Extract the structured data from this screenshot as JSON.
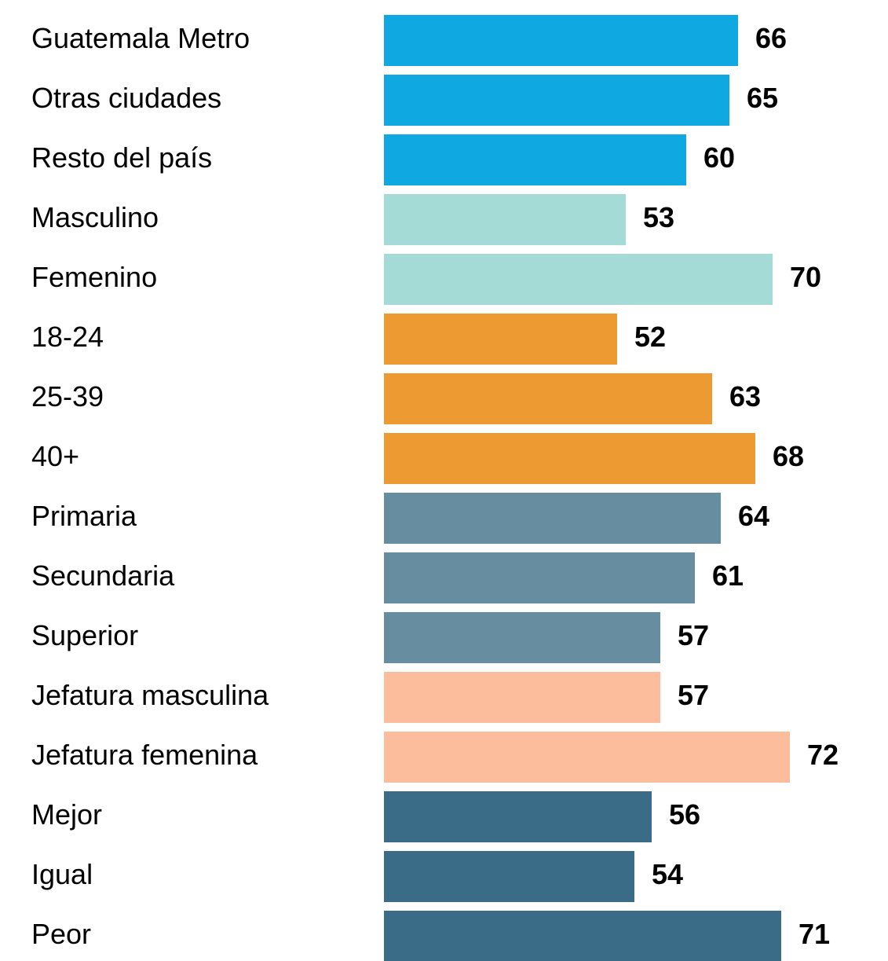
{
  "chart_data": {
    "type": "bar",
    "orientation": "horizontal",
    "categories": [
      "Guatemala Metro",
      "Otras ciudades",
      "Resto del país",
      "Masculino",
      "Femenino",
      "18-24",
      "25-39",
      "40+",
      "Primaria",
      "Secundaria",
      "Superior",
      "Jefatura masculina",
      "Jefatura femenina",
      "Mejor",
      "Igual",
      "Peor"
    ],
    "values": [
      66,
      65,
      60,
      53,
      70,
      52,
      63,
      68,
      64,
      61,
      57,
      57,
      72,
      56,
      54,
      71
    ],
    "colors": [
      "#10a8e0",
      "#10a8e0",
      "#10a8e0",
      "#a5dbd7",
      "#a5dbd7",
      "#ee9a33",
      "#ee9a33",
      "#ee9a33",
      "#668ea0",
      "#668ea0",
      "#668ea0",
      "#fbbd9b",
      "#fbbd9b",
      "#3a6b87",
      "#3a6b87",
      "#3a6b87"
    ],
    "xlim": [
      25,
      75
    ]
  }
}
